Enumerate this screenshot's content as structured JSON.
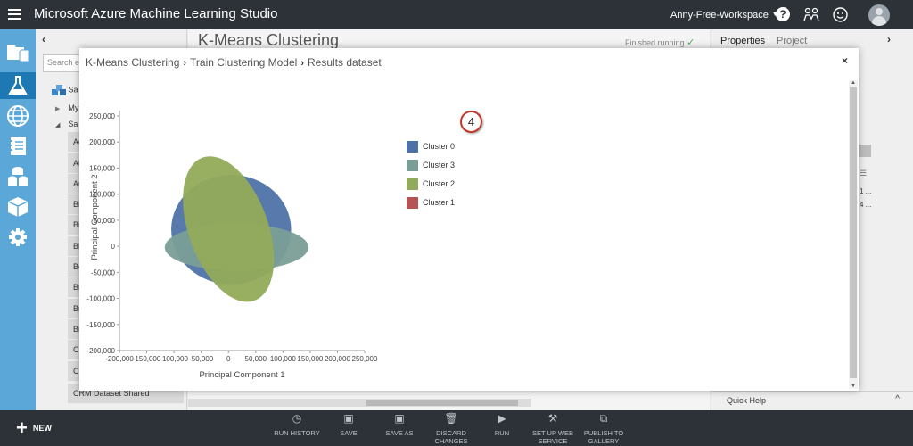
{
  "app": {
    "title": "Microsoft Azure Machine Learning Studio",
    "workspace": "Anny-Free-Workspace",
    "help_label": "?"
  },
  "palette": {
    "search_placeholder": "Search ex",
    "tree": [
      {
        "label": "Sa",
        "kind": "root"
      },
      {
        "label": "My",
        "kind": "child"
      },
      {
        "label": "Sa",
        "kind": "child"
      }
    ],
    "items": [
      "Ad",
      "Ai",
      "Au",
      "Bi",
      "Bi",
      "Bl",
      "Bo",
      "Br",
      "Br",
      "Br",
      "CR",
      "CR",
      "CRM Dataset Shared"
    ]
  },
  "canvas": {
    "experiment_title": "K-Means Clustering",
    "status": "Finished running"
  },
  "properties": {
    "tabs": [
      "Properties",
      "Project"
    ],
    "quick_help": "Quick Help",
    "values": [
      "1 ...",
      "4 ..."
    ]
  },
  "toolbar": {
    "new_label": "NEW",
    "buttons": [
      {
        "label": "RUN HISTORY",
        "icon": "clock-icon"
      },
      {
        "label": "SAVE",
        "icon": "save-icon"
      },
      {
        "label": "SAVE AS",
        "icon": "save-as-icon"
      },
      {
        "label": "DISCARD CHANGES",
        "icon": "trash-icon"
      },
      {
        "label": "RUN",
        "icon": "play-icon"
      },
      {
        "label": "SET UP WEB SERVICE",
        "icon": "web-service-icon"
      },
      {
        "label": "PUBLISH TO GALLERY",
        "icon": "gallery-icon"
      }
    ]
  },
  "modal": {
    "breadcrumbs": [
      "K-Means Clustering",
      "Train Clustering Model",
      "Results dataset"
    ],
    "badge": "4",
    "close_label": "×"
  },
  "chart_data": {
    "type": "scatter",
    "title": "",
    "xlabel": "Principal Component 1",
    "ylabel": "Principal Component 2",
    "xlim": [
      -200000,
      250000
    ],
    "ylim": [
      -200000,
      250000
    ],
    "x_ticks": [
      "-200,000",
      "-150,000",
      "-100,000",
      "-50,000",
      "0",
      "50,000",
      "100,000",
      "150,000",
      "200,000",
      "250,000"
    ],
    "y_ticks": [
      "250,000",
      "200,000",
      "150,000",
      "100,000",
      "50,000",
      "0",
      "-50,000",
      "-100,000",
      "-150,000",
      "-200,000"
    ],
    "legend": "right",
    "series": [
      {
        "name": "Cluster 0",
        "color": "#4e72a8",
        "shape": "ellipse",
        "center": [
          5000,
          32000
        ],
        "rx": 110000,
        "ry": 105000,
        "rotation": 0
      },
      {
        "name": "Cluster 3",
        "color": "#7a9e96",
        "shape": "ellipse",
        "center": [
          15000,
          -2000
        ],
        "rx": 132000,
        "ry": 45000,
        "rotation": 0
      },
      {
        "name": "Cluster 2",
        "color": "#92ab5a",
        "shape": "ellipse",
        "center": [
          0,
          33000
        ],
        "rx": 73000,
        "ry": 146000,
        "rotation": -20
      },
      {
        "name": "Cluster 1",
        "color": "#b55454",
        "shape": "ellipse",
        "center": null
      }
    ]
  }
}
